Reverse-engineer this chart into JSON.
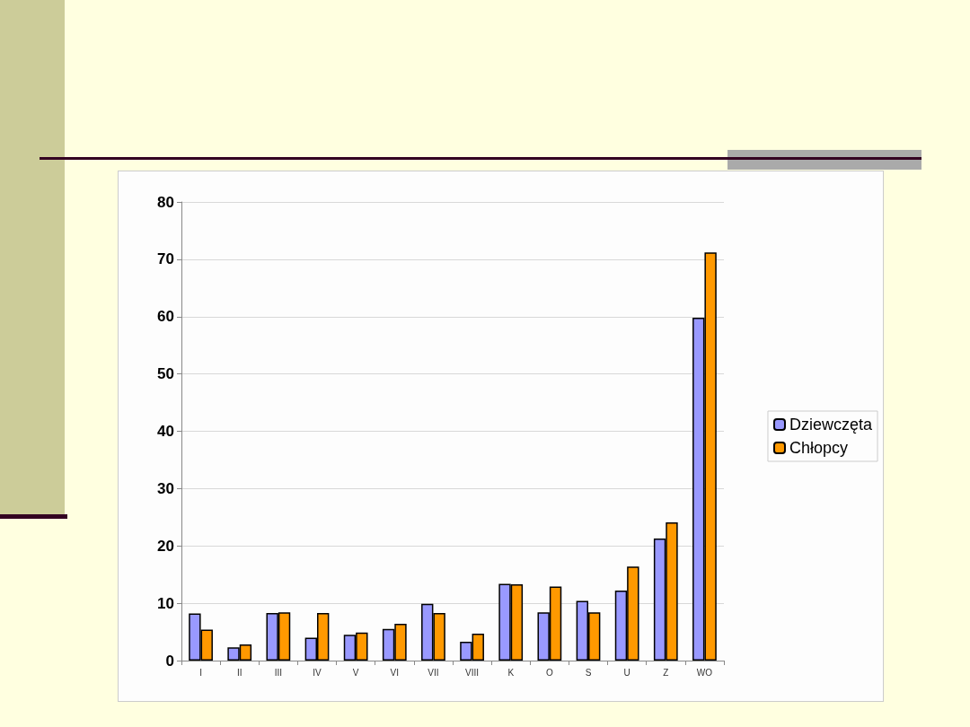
{
  "chart_data": {
    "type": "bar",
    "categories": [
      "I",
      "II",
      "III",
      "IV",
      "V",
      "VI",
      "VII",
      "VIII",
      "K",
      "O",
      "S",
      "U",
      "Z",
      "WO"
    ],
    "series": [
      {
        "name": "Dziewczęta",
        "color": "#9999ff",
        "values": [
          8.2,
          2.3,
          8.3,
          4.0,
          4.5,
          5.5,
          9.9,
          3.3,
          13.4,
          8.4,
          10.4,
          12.2,
          21.3,
          59.8
        ]
      },
      {
        "name": "Chłopcy",
        "color": "#ff9900",
        "values": [
          5.4,
          2.8,
          8.4,
          8.3,
          4.9,
          6.4,
          8.3,
          4.7,
          13.3,
          12.9,
          8.4,
          16.4,
          24.1,
          71.2
        ]
      }
    ],
    "ylim": [
      0,
      80
    ],
    "yticks": [
      0,
      10,
      20,
      30,
      40,
      50,
      60,
      70,
      80
    ],
    "grid": "y",
    "legend": "right"
  }
}
